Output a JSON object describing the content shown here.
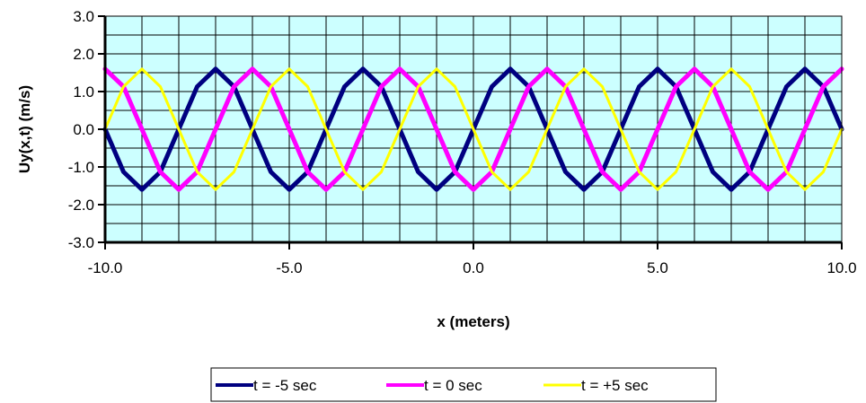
{
  "chart_data": {
    "type": "line",
    "title": "",
    "xlabel": "x (meters)",
    "ylabel": "Uy(x,t) (m/s)",
    "xlim": [
      -10,
      10
    ],
    "ylim": [
      -3,
      3
    ],
    "x_ticks": [
      -10,
      -5,
      0,
      5,
      10
    ],
    "x_tick_labels": [
      "-10.0",
      "-5.0",
      "0.0",
      "5.0",
      "10.0"
    ],
    "y_ticks": [
      -3,
      -2,
      -1,
      0,
      1,
      2,
      3
    ],
    "y_tick_labels": [
      "-3.0",
      "-2.0",
      "-1.0",
      "0.0",
      "1.0",
      "2.0",
      "3.0"
    ],
    "grid": true,
    "legend_position": "bottom",
    "plot_background": "#ccffff",
    "x": [
      -10,
      -9.5,
      -9,
      -8.5,
      -8,
      -7.5,
      -7,
      -6.5,
      -6,
      -5.5,
      -5,
      -4.5,
      -4,
      -3.5,
      -3,
      -2.5,
      -2,
      -1.5,
      -1,
      -0.5,
      0,
      0.5,
      1,
      1.5,
      2,
      2.5,
      3,
      3.5,
      4,
      4.5,
      5,
      5.5,
      6,
      6.5,
      7,
      7.5,
      8,
      8.5,
      9,
      9.5,
      10
    ],
    "series": [
      {
        "name": "t = -5 sec",
        "color": "#000080",
        "line_width": 5,
        "values": [
          0.0,
          -1.13,
          -1.6,
          -1.13,
          0.0,
          1.13,
          1.6,
          1.13,
          0.0,
          -1.13,
          -1.6,
          -1.13,
          0.0,
          1.13,
          1.6,
          1.13,
          0.0,
          -1.13,
          -1.6,
          -1.13,
          0.0,
          1.13,
          1.6,
          1.13,
          0.0,
          -1.13,
          -1.6,
          -1.13,
          0.0,
          1.13,
          1.6,
          1.13,
          0.0,
          -1.13,
          -1.6,
          -1.13,
          0.0,
          1.13,
          1.6,
          1.13,
          0.0
        ]
      },
      {
        "name": "t = 0 sec",
        "color": "#ff00ff",
        "line_width": 5,
        "values": [
          1.6,
          1.13,
          0.0,
          -1.13,
          -1.6,
          -1.13,
          0.0,
          1.13,
          1.6,
          1.13,
          0.0,
          -1.13,
          -1.6,
          -1.13,
          0.0,
          1.13,
          1.6,
          1.13,
          0.0,
          -1.13,
          -1.6,
          -1.13,
          0.0,
          1.13,
          1.6,
          1.13,
          0.0,
          -1.13,
          -1.6,
          -1.13,
          0.0,
          1.13,
          1.6,
          1.13,
          0.0,
          -1.13,
          -1.6,
          -1.13,
          0.0,
          1.13,
          1.6
        ]
      },
      {
        "name": "t = +5 sec",
        "color": "#ffff00",
        "line_width": 3,
        "values": [
          0.0,
          1.13,
          1.6,
          1.13,
          0.0,
          -1.13,
          -1.6,
          -1.13,
          0.0,
          1.13,
          1.6,
          1.13,
          0.0,
          -1.13,
          -1.6,
          -1.13,
          0.0,
          1.13,
          1.6,
          1.13,
          0.0,
          -1.13,
          -1.6,
          -1.13,
          0.0,
          1.13,
          1.6,
          1.13,
          0.0,
          -1.13,
          -1.6,
          -1.13,
          0.0,
          1.13,
          1.6,
          1.13,
          0.0,
          -1.13,
          -1.6,
          -1.13,
          0.0
        ]
      }
    ]
  }
}
